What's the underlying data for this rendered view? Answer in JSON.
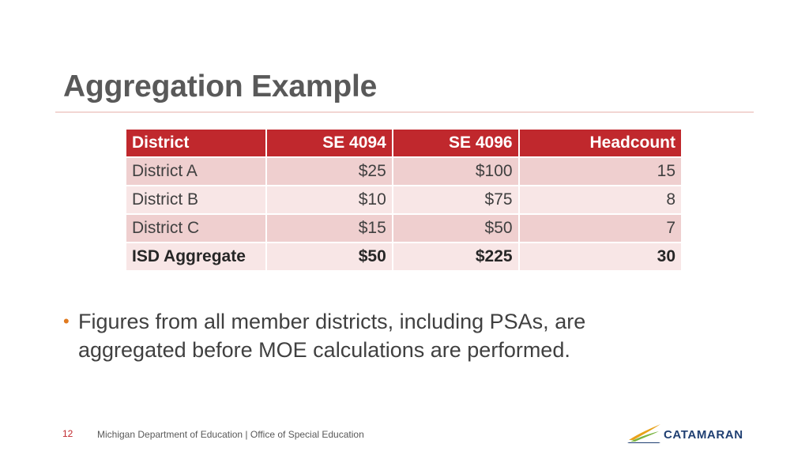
{
  "slide": {
    "title": "Aggregation Example",
    "table": {
      "headers": [
        "District",
        "SE 4094",
        "SE 4096",
        "Headcount"
      ],
      "rows": [
        [
          "District A",
          "$25",
          "$100",
          "15"
        ],
        [
          "District B",
          "$10",
          "$75",
          "8"
        ],
        [
          "District C",
          "$15",
          "$50",
          "7"
        ]
      ],
      "total": [
        "ISD Aggregate",
        "$50",
        "$225",
        "30"
      ]
    },
    "bullet": "Figures from all member districts, including PSAs, are aggregated before MOE calculations are performed.",
    "bullet_marker": "•"
  },
  "footer": {
    "page_number": "12",
    "text": "Michigan Department of Education | Office of Special Education"
  },
  "logo": {
    "text": "CATAMARAN",
    "colors": {
      "gold": "#e8a21a",
      "green": "#7bb542",
      "navy": "#1f3f72"
    }
  },
  "colors": {
    "accent_red": "#c0282d",
    "row_dark": "#efcfcf",
    "row_light": "#f8e6e6",
    "bullet_orange": "#e07a1f",
    "title_gray": "#595959"
  }
}
